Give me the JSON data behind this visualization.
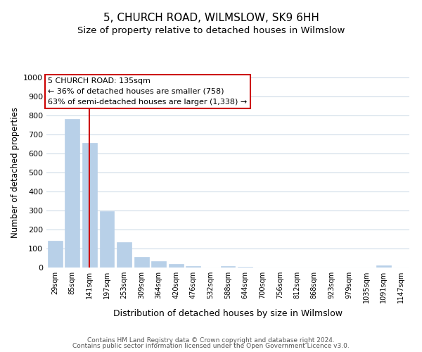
{
  "title": "5, CHURCH ROAD, WILMSLOW, SK9 6HH",
  "subtitle": "Size of property relative to detached houses in Wilmslow",
  "bar_labels": [
    "29sqm",
    "85sqm",
    "141sqm",
    "197sqm",
    "253sqm",
    "309sqm",
    "364sqm",
    "420sqm",
    "476sqm",
    "532sqm",
    "588sqm",
    "644sqm",
    "700sqm",
    "756sqm",
    "812sqm",
    "868sqm",
    "923sqm",
    "979sqm",
    "1035sqm",
    "1091sqm",
    "1147sqm"
  ],
  "bar_values": [
    140,
    780,
    655,
    295,
    135,
    57,
    32,
    17,
    7,
    0,
    8,
    3,
    0,
    0,
    0,
    0,
    0,
    0,
    0,
    10,
    0
  ],
  "bar_color": "#b8d0e8",
  "bar_edge_color": "#b8d0e8",
  "ylabel": "Number of detached properties",
  "xlabel": "Distribution of detached houses by size in Wilmslow",
  "ylim": [
    0,
    1000
  ],
  "yticks": [
    0,
    100,
    200,
    300,
    400,
    500,
    600,
    700,
    800,
    900,
    1000
  ],
  "vline_x": 2,
  "vline_color": "#cc0000",
  "annotation_title": "5 CHURCH ROAD: 135sqm",
  "annotation_line1": "← 36% of detached houses are smaller (758)",
  "annotation_line2": "63% of semi-detached houses are larger (1,338) →",
  "annotation_box_color": "#ffffff",
  "annotation_box_edge": "#cc0000",
  "footer_line1": "Contains HM Land Registry data © Crown copyright and database right 2024.",
  "footer_line2": "Contains public sector information licensed under the Open Government Licence v3.0.",
  "grid_color": "#d0dce8",
  "background_color": "#ffffff",
  "title_fontsize": 11,
  "subtitle_fontsize": 9.5
}
